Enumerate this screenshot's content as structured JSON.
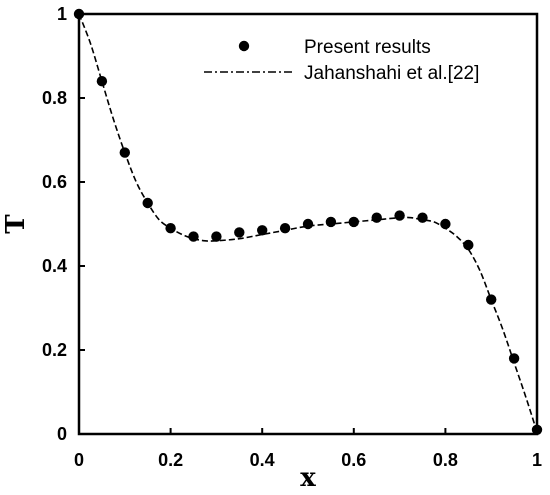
{
  "chart_data": {
    "type": "scatter",
    "xlabel": "x",
    "ylabel": "T",
    "xlim": [
      0,
      1
    ],
    "ylim": [
      0,
      1
    ],
    "x_ticks": [
      "0",
      "0.2",
      "0.4",
      "0.6",
      "0.8",
      "1"
    ],
    "y_ticks": [
      "0",
      "0.2",
      "0.4",
      "0.6",
      "0.8",
      "1"
    ],
    "grid": false,
    "legend_position": "top-right",
    "series": [
      {
        "name": "Present results",
        "style": "markers",
        "color": "#000000",
        "x": [
          0.0,
          0.05,
          0.1,
          0.15,
          0.2,
          0.25,
          0.3,
          0.35,
          0.4,
          0.45,
          0.5,
          0.55,
          0.6,
          0.65,
          0.7,
          0.75,
          0.8,
          0.85,
          0.9,
          0.95,
          1.0
        ],
        "y": [
          1.0,
          0.84,
          0.67,
          0.55,
          0.49,
          0.47,
          0.47,
          0.48,
          0.485,
          0.49,
          0.5,
          0.505,
          0.505,
          0.515,
          0.52,
          0.515,
          0.5,
          0.45,
          0.32,
          0.18,
          0.01
        ]
      },
      {
        "name": "Jahanshahi et al.[22]",
        "style": "dash-dot line",
        "color": "#000000",
        "x": [
          0.0,
          0.025,
          0.05,
          0.075,
          0.1,
          0.125,
          0.15,
          0.175,
          0.2,
          0.225,
          0.25,
          0.275,
          0.3,
          0.35,
          0.4,
          0.45,
          0.5,
          0.55,
          0.6,
          0.65,
          0.7,
          0.725,
          0.75,
          0.775,
          0.8,
          0.825,
          0.85,
          0.875,
          0.9,
          0.925,
          0.95,
          0.975,
          1.0
        ],
        "y": [
          1.0,
          0.93,
          0.84,
          0.75,
          0.67,
          0.6,
          0.55,
          0.51,
          0.49,
          0.475,
          0.465,
          0.46,
          0.46,
          0.465,
          0.475,
          0.485,
          0.495,
          0.5,
          0.505,
          0.51,
          0.515,
          0.515,
          0.51,
          0.505,
          0.49,
          0.47,
          0.44,
          0.39,
          0.32,
          0.25,
          0.17,
          0.09,
          0.005
        ]
      }
    ]
  }
}
